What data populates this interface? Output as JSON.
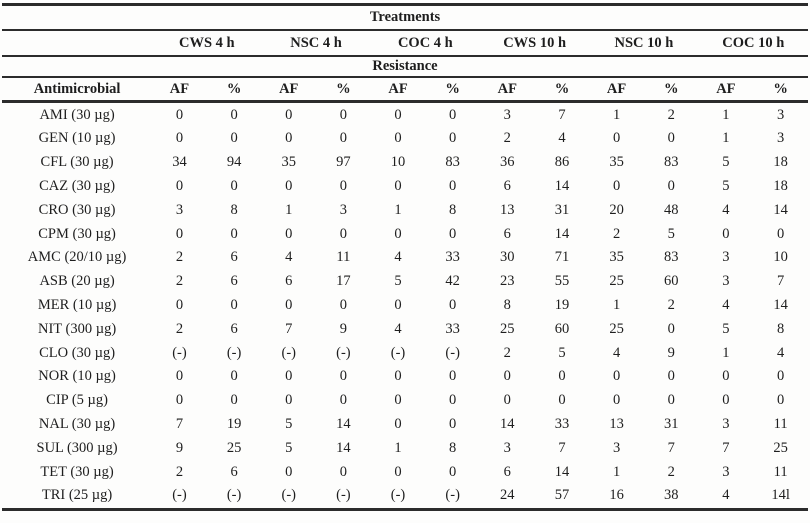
{
  "table": {
    "treatments_label": "Treatments",
    "resistance_label": "Resistance",
    "row_header_label": "Antimicrobial",
    "groups": [
      {
        "label": "CWS 4 h"
      },
      {
        "label": "NSC 4 h"
      },
      {
        "label": "COC 4 h"
      },
      {
        "label": "CWS 10 h"
      },
      {
        "label": "NSC 10 h"
      },
      {
        "label": "COC 10 h"
      }
    ],
    "sub_columns": [
      "AF",
      "%"
    ],
    "rows": [
      {
        "label": "AMI (30 µg)",
        "values": [
          "0",
          "0",
          "0",
          "0",
          "0",
          "0",
          "3",
          "7",
          "1",
          "2",
          "1",
          "3"
        ]
      },
      {
        "label": "GEN (10 µg)",
        "values": [
          "0",
          "0",
          "0",
          "0",
          "0",
          "0",
          "2",
          "4",
          "0",
          "0",
          "1",
          "3"
        ]
      },
      {
        "label": "CFL (30 µg)",
        "values": [
          "34",
          "94",
          "35",
          "97",
          "10",
          "83",
          "36",
          "86",
          "35",
          "83",
          "5",
          "18"
        ]
      },
      {
        "label": "CAZ (30 µg)",
        "values": [
          "0",
          "0",
          "0",
          "0",
          "0",
          "0",
          "6",
          "14",
          "0",
          "0",
          "5",
          "18"
        ]
      },
      {
        "label": "CRO (30 µg)",
        "values": [
          "3",
          "8",
          "1",
          "3",
          "1",
          "8",
          "13",
          "31",
          "20",
          "48",
          "4",
          "14"
        ]
      },
      {
        "label": "CPM (30 µg)",
        "values": [
          "0",
          "0",
          "0",
          "0",
          "0",
          "0",
          "6",
          "14",
          "2",
          "5",
          "0",
          "0"
        ]
      },
      {
        "label": "AMC (20/10 µg)",
        "values": [
          "2",
          "6",
          "4",
          "11",
          "4",
          "33",
          "30",
          "71",
          "35",
          "83",
          "3",
          "10"
        ]
      },
      {
        "label": "ASB (20 µg)",
        "values": [
          "2",
          "6",
          "6",
          "17",
          "5",
          "42",
          "23",
          "55",
          "25",
          "60",
          "3",
          "7"
        ]
      },
      {
        "label": "MER (10 µg)",
        "values": [
          "0",
          "0",
          "0",
          "0",
          "0",
          "0",
          "8",
          "19",
          "1",
          "2",
          "4",
          "14"
        ]
      },
      {
        "label": "NIT (300 µg)",
        "values": [
          "2",
          "6",
          "7",
          "9",
          "4",
          "33",
          "25",
          "60",
          "25",
          "0",
          "5",
          "8"
        ]
      },
      {
        "label": "CLO (30 µg)",
        "values": [
          "(-)",
          "(-)",
          "(-)",
          "(-)",
          "(-)",
          "(-)",
          "2",
          "5",
          "4",
          "9",
          "1",
          "4"
        ]
      },
      {
        "label": "NOR (10 µg)",
        "values": [
          "0",
          "0",
          "0",
          "0",
          "0",
          "0",
          "0",
          "0",
          "0",
          "0",
          "0",
          "0"
        ]
      },
      {
        "label": "CIP (5 µg)",
        "values": [
          "0",
          "0",
          "0",
          "0",
          "0",
          "0",
          "0",
          "0",
          "0",
          "0",
          "0",
          "0"
        ]
      },
      {
        "label": "NAL (30 µg)",
        "values": [
          "7",
          "19",
          "5",
          "14",
          "0",
          "0",
          "14",
          "33",
          "13",
          "31",
          "3",
          "11"
        ]
      },
      {
        "label": "SUL (300 µg)",
        "values": [
          "9",
          "25",
          "5",
          "14",
          "1",
          "8",
          "3",
          "7",
          "3",
          "7",
          "7",
          "25"
        ]
      },
      {
        "label": "TET (30 µg)",
        "values": [
          "2",
          "6",
          "0",
          "0",
          "0",
          "0",
          "6",
          "14",
          "1",
          "2",
          "3",
          "11"
        ]
      },
      {
        "label": "TRI (25 µg)",
        "values": [
          "(-)",
          "(-)",
          "(-)",
          "(-)",
          "(-)",
          "(-)",
          "24",
          "57",
          "16",
          "38",
          "4",
          "14l"
        ]
      }
    ]
  },
  "colors": {
    "text": "#1e1e1e",
    "rule_line": "#2c2c2c",
    "background": "#fdfdfc"
  }
}
